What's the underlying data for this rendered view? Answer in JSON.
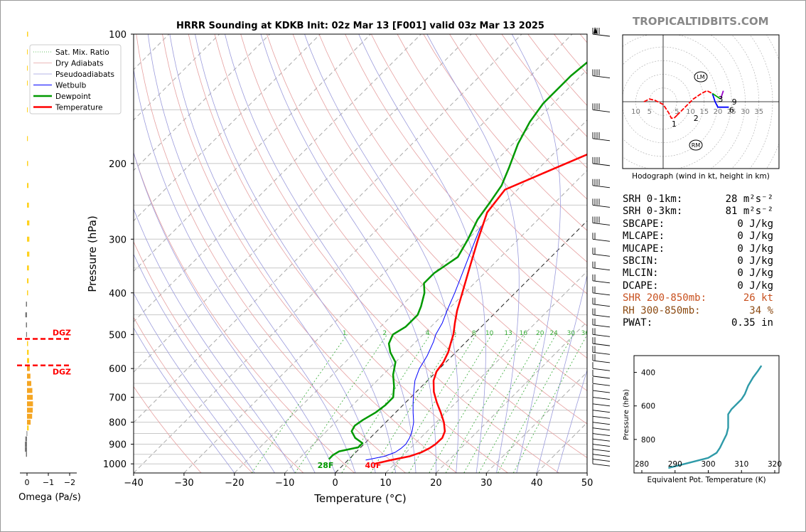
{
  "brand": "TROPICALTIDBITS.COM",
  "skewt": {
    "title": "HRRR Sounding at KDKB Init: 02z Mar 13 [F001] valid 03z Mar 13 2025",
    "xlabel": "Temperature (°C)",
    "ylabel": "Pressure (hPa)",
    "x_ticks": [
      "−40",
      "−30",
      "−20",
      "−10",
      "0",
      "10",
      "20",
      "30",
      "40",
      "50"
    ],
    "y_ticks": [
      "100",
      "200",
      "300",
      "400",
      "500",
      "600",
      "700",
      "800",
      "900",
      "1000"
    ],
    "legend": [
      "Sat. Mix. Ratio",
      "Dry Adiabats",
      "Pseudoadiabats",
      "Wetbulb",
      "Dewpoint",
      "Temperature"
    ],
    "surface_temp_label": "40F",
    "surface_dew_label": "28F",
    "mixing_ratio_labels": [
      "1",
      "2",
      "4",
      "6",
      "8",
      "10",
      "13",
      "16",
      "20",
      "24",
      "30",
      "36"
    ]
  },
  "omega": {
    "xlabel": "Omega (Pa/s)",
    "x_ticks": [
      "0",
      "−1",
      "−2"
    ],
    "dgz_label": "DGZ"
  },
  "hodograph": {
    "caption": "Hodograph (wind in kt, height in km)",
    "ring_labels_left": [
      "10",
      "5"
    ],
    "ring_labels_right": [
      "5",
      "10",
      "15",
      "20",
      "25",
      "30",
      "35"
    ],
    "height_labels": [
      "1",
      "2",
      "3",
      "6",
      "9"
    ],
    "lm_label": "LM",
    "rm_label": "RM"
  },
  "stats": [
    {
      "label": "SRH 0-1km:",
      "value": "28 m²s⁻²",
      "color": "#000"
    },
    {
      "label": "SRH 0-3km:",
      "value": "81 m²s⁻²",
      "color": "#000"
    },
    {
      "label": "SBCAPE:",
      "value": "0 J/kg",
      "color": "#000"
    },
    {
      "label": "MLCAPE:",
      "value": "0 J/kg",
      "color": "#000"
    },
    {
      "label": "MUCAPE:",
      "value": "0 J/kg",
      "color": "#000"
    },
    {
      "label": "SBCIN:",
      "value": "0 J/kg",
      "color": "#000"
    },
    {
      "label": "MLCIN:",
      "value": "0 J/kg",
      "color": "#000"
    },
    {
      "label": "DCAPE:",
      "value": "0 J/kg",
      "color": "#000"
    },
    {
      "label": "SHR 200-850mb:",
      "value": "26 kt",
      "color": "#c8501e"
    },
    {
      "label": "RH 300-850mb:",
      "value": "34 %",
      "color": "#8b4a12"
    },
    {
      "label": "PWAT:",
      "value": "0.35 in",
      "color": "#000"
    }
  ],
  "theta_e": {
    "xlabel": "Equivalent Pot. Temperature (K)",
    "ylabel": "Pressure (hPa)",
    "x_ticks": [
      "280",
      "290",
      "300",
      "310",
      "320"
    ],
    "y_ticks": [
      "400",
      "600",
      "800"
    ]
  },
  "chart_data": [
    {
      "type": "line",
      "name": "skew-T",
      "xlim": [
        -40,
        50
      ],
      "ylim": [
        1050,
        100
      ],
      "y_scale": "log",
      "series": [
        {
          "name": "Temperature",
          "color": "#ff0000",
          "points": [
            [
              1000,
              6
            ],
            [
              980,
              8.5
            ],
            [
              960,
              11.5
            ],
            [
              940,
              13
            ],
            [
              920,
              13.8
            ],
            [
              900,
              14.2
            ],
            [
              870,
              14.3
            ],
            [
              840,
              13.5
            ],
            [
              800,
              11.5
            ],
            [
              760,
              9
            ],
            [
              720,
              6.2
            ],
            [
              680,
              3.5
            ],
            [
              640,
              1.2
            ],
            [
              610,
              0
            ],
            [
              580,
              -0.5
            ],
            [
              550,
              -1.5
            ],
            [
              520,
              -3
            ],
            [
              500,
              -4
            ],
            [
              470,
              -6
            ],
            [
              440,
              -8
            ],
            [
              400,
              -10.5
            ],
            [
              350,
              -14
            ],
            [
              300,
              -18
            ],
            [
              260,
              -21.5
            ],
            [
              230,
              -22.5
            ],
            [
              210,
              -18
            ],
            [
              190,
              -13
            ],
            [
              170,
              -8.5
            ],
            [
              150,
              -6
            ],
            [
              130,
              -3.5
            ],
            [
              110,
              -1.2
            ],
            [
              100,
              0
            ]
          ]
        },
        {
          "name": "Dewpoint",
          "color": "#009900",
          "points": [
            [
              975,
              -4
            ],
            [
              955,
              -4
            ],
            [
              935,
              -3.5
            ],
            [
              915,
              -0.5
            ],
            [
              895,
              -0.5
            ],
            [
              870,
              -3
            ],
            [
              840,
              -5
            ],
            [
              815,
              -5.5
            ],
            [
              790,
              -5
            ],
            [
              760,
              -4
            ],
            [
              730,
              -3.5
            ],
            [
              700,
              -3.5
            ],
            [
              660,
              -5.5
            ],
            [
              620,
              -8
            ],
            [
              580,
              -10
            ],
            [
              550,
              -13
            ],
            [
              525,
              -15
            ],
            [
              500,
              -16
            ],
            [
              480,
              -15
            ],
            [
              450,
              -15
            ],
            [
              430,
              -16
            ],
            [
              400,
              -18
            ],
            [
              380,
              -20
            ],
            [
              360,
              -20
            ],
            [
              330,
              -18.5
            ],
            [
              300,
              -20
            ],
            [
              270,
              -22
            ],
            [
              245,
              -23
            ],
            [
              225,
              -24
            ],
            [
              205,
              -26
            ],
            [
              180,
              -29
            ],
            [
              160,
              -31
            ],
            [
              145,
              -32
            ],
            [
              125,
              -32
            ],
            [
              110,
              -31
            ],
            [
              100,
              -29
            ]
          ]
        },
        {
          "name": "Wetbulb",
          "color": "#0000ff",
          "points": [
            [
              980,
              3.5
            ],
            [
              960,
              6.5
            ],
            [
              940,
              7.8
            ],
            [
              920,
              8.2
            ],
            [
              900,
              8.3
            ],
            [
              870,
              7.8
            ],
            [
              840,
              7
            ],
            [
              800,
              5.5
            ],
            [
              760,
              3.5
            ],
            [
              720,
              1.5
            ],
            [
              680,
              -0.5
            ],
            [
              640,
              -2.5
            ],
            [
              600,
              -4
            ],
            [
              560,
              -5
            ],
            [
              520,
              -6.5
            ],
            [
              500,
              -7.5
            ],
            [
              470,
              -8.5
            ],
            [
              440,
              -10
            ],
            [
              400,
              -12
            ],
            [
              350,
              -15
            ],
            [
              300,
              -18.5
            ],
            [
              280,
              -20
            ]
          ]
        }
      ],
      "omega_pa_s": [
        [
          100,
          -0.05
        ],
        [
          110,
          -0.02
        ],
        [
          120,
          -0.02
        ],
        [
          130,
          -0.02
        ],
        [
          150,
          -0.03
        ],
        [
          175,
          -0.04
        ],
        [
          200,
          -0.05
        ],
        [
          225,
          -0.07
        ],
        [
          250,
          -0.09
        ],
        [
          275,
          -0.11
        ],
        [
          300,
          -0.11
        ],
        [
          325,
          -0.11
        ],
        [
          350,
          -0.09
        ],
        [
          375,
          -0.07
        ],
        [
          400,
          -0.05
        ],
        [
          425,
          0.05
        ],
        [
          450,
          0.08
        ],
        [
          475,
          0.05
        ],
        [
          500,
          0.04
        ],
        [
          525,
          -0.05
        ],
        [
          550,
          -0.08
        ],
        [
          575,
          -0.1
        ],
        [
          600,
          -0.13
        ],
        [
          625,
          -0.16
        ],
        [
          650,
          -0.2
        ],
        [
          675,
          -0.25
        ],
        [
          700,
          -0.27
        ],
        [
          725,
          -0.28
        ],
        [
          750,
          -0.27
        ],
        [
          775,
          -0.24
        ],
        [
          800,
          -0.17
        ],
        [
          825,
          -0.08
        ],
        [
          850,
          0.02
        ],
        [
          875,
          0.08
        ],
        [
          900,
          0.1
        ],
        [
          925,
          0.1
        ],
        [
          950,
          0.05
        ]
      ],
      "dgz_top_hpa": 512,
      "dgz_bottom_hpa": 590
    },
    {
      "type": "line",
      "name": "hodograph",
      "unit": "kt",
      "segments": [
        {
          "color": "#ff0000",
          "points": [
            [
              -7,
              0
            ],
            [
              -5,
              1
            ],
            [
              -3,
              0.5
            ],
            [
              0,
              -1
            ],
            [
              2,
              -4
            ],
            [
              3,
              -6
            ],
            [
              4,
              -6
            ],
            [
              5,
              -5
            ]
          ]
        },
        {
          "color": "#ff0000",
          "points": [
            [
              5,
              -5
            ],
            [
              8,
              -2
            ],
            [
              11,
              1
            ],
            [
              14,
              3
            ],
            [
              16,
              4
            ],
            [
              18,
              3
            ]
          ]
        },
        {
          "color": "#0000ff",
          "points": [
            [
              18,
              3
            ],
            [
              19,
              0
            ],
            [
              20,
              -2
            ],
            [
              24,
              -2
            ]
          ]
        },
        {
          "color": "#00aa00",
          "points": [
            [
              18,
              3
            ],
            [
              21,
              1
            ]
          ]
        },
        {
          "color": "#9900cc",
          "points": [
            [
              21,
              1
            ],
            [
              22,
              4
            ]
          ]
        }
      ]
    },
    {
      "type": "line",
      "name": "equivalent potential temperature",
      "xlim": [
        280,
        320
      ],
      "series": [
        {
          "name": "theta-e",
          "color": "#2e9aa8",
          "points": [
            [
              970,
              288
            ],
            [
              940,
              294
            ],
            [
              910,
              300
            ],
            [
              880,
              302.5
            ],
            [
              850,
              303.5
            ],
            [
              810,
              304.5
            ],
            [
              770,
              305.5
            ],
            [
              730,
              306
            ],
            [
              690,
              306
            ],
            [
              650,
              306
            ],
            [
              620,
              307
            ],
            [
              600,
              308
            ],
            [
              580,
              309
            ],
            [
              560,
              310
            ],
            [
              530,
              311
            ],
            [
              480,
              312
            ],
            [
              430,
              313.5
            ],
            [
              390,
              315
            ],
            [
              360,
              316
            ]
          ]
        }
      ]
    }
  ]
}
